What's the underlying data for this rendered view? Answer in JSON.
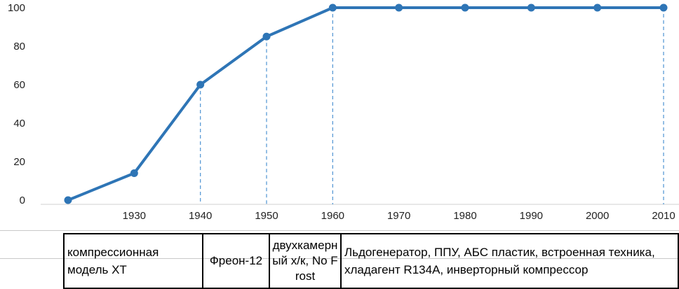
{
  "chart_data": {
    "type": "line",
    "x": [
      1920,
      1930,
      1940,
      1950,
      1960,
      1970,
      1980,
      1990,
      2000,
      2010
    ],
    "x_tick_labels": [
      "1930",
      "1940",
      "1950",
      "1960",
      "1970",
      "1980",
      "1990",
      "2000",
      "2010"
    ],
    "series": [
      {
        "values": [
          0,
          14,
          60,
          85,
          100,
          100,
          100,
          100,
          100,
          100
        ]
      }
    ],
    "yticks": [
      "0",
      "20",
      "40",
      "60",
      "80",
      "100"
    ],
    "ylim": [
      0,
      100
    ],
    "xlim": [
      1920,
      2010
    ],
    "grid": false,
    "dropline_years": [
      1940,
      1950,
      1960,
      2010
    ],
    "line_color": "#2E75B6",
    "dropline_color": "#5B9BD5"
  },
  "table": {
    "cells": [
      {
        "text": "компрессионная модель ХТ"
      },
      {
        "text": "Фреон-12"
      },
      {
        "text": "двухкамерный х/к, No Frost"
      },
      {
        "text": "Льдогенератор, ППУ, АБС пластик, встроенная техника, хладагент R134A, инверторный компрессор"
      }
    ]
  }
}
